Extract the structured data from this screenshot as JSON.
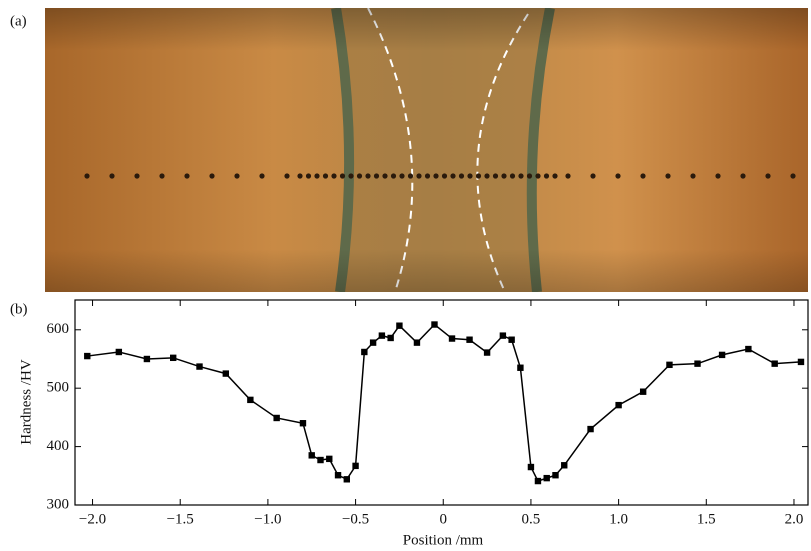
{
  "image_panel": {
    "label": "(a)"
  },
  "chart_data": {
    "type": "line",
    "panel_label": "(b)",
    "xlabel": "Position /mm",
    "ylabel": "Hardness /HV",
    "xlim": [
      -2.1,
      2.08
    ],
    "ylim": [
      300,
      651
    ],
    "xticks": [
      {
        "value": -2.0,
        "label": "−2.0"
      },
      {
        "value": -1.5,
        "label": "−1.5"
      },
      {
        "value": -1.0,
        "label": "−1.0"
      },
      {
        "value": -0.5,
        "label": "−0.5"
      },
      0,
      {
        "value": 0.5,
        "label": "0.5"
      },
      {
        "value": 1.0,
        "label": "1.0"
      },
      {
        "value": 1.5,
        "label": "1.5"
      },
      {
        "value": 2.0,
        "label": "2.0"
      }
    ],
    "yticks": [
      300,
      400,
      500,
      600
    ],
    "x": [
      -2.03,
      -1.85,
      -1.69,
      -1.54,
      -1.39,
      -1.24,
      -1.1,
      -0.95,
      -0.8,
      -0.75,
      -0.7,
      -0.65,
      -0.6,
      -0.55,
      -0.5,
      -0.45,
      -0.4,
      -0.35,
      -0.3,
      -0.25,
      -0.15,
      -0.05,
      0.05,
      0.15,
      0.25,
      0.34,
      0.39,
      0.44,
      0.5,
      0.54,
      0.59,
      0.64,
      0.69,
      0.84,
      1.0,
      1.14,
      1.29,
      1.45,
      1.59,
      1.74,
      1.89,
      2.04
    ],
    "series": [
      {
        "color": "#000000",
        "values": [
          555,
          562,
          550,
          552,
          537,
          525,
          480,
          449,
          440,
          385,
          377,
          379,
          351,
          344,
          367,
          562,
          578,
          590,
          586,
          607,
          578,
          609,
          585,
          583,
          561,
          590,
          583,
          535,
          365,
          341,
          346,
          351,
          368,
          430,
          471,
          494,
          540,
          542,
          557,
          567,
          542,
          545
        ]
      }
    ]
  }
}
